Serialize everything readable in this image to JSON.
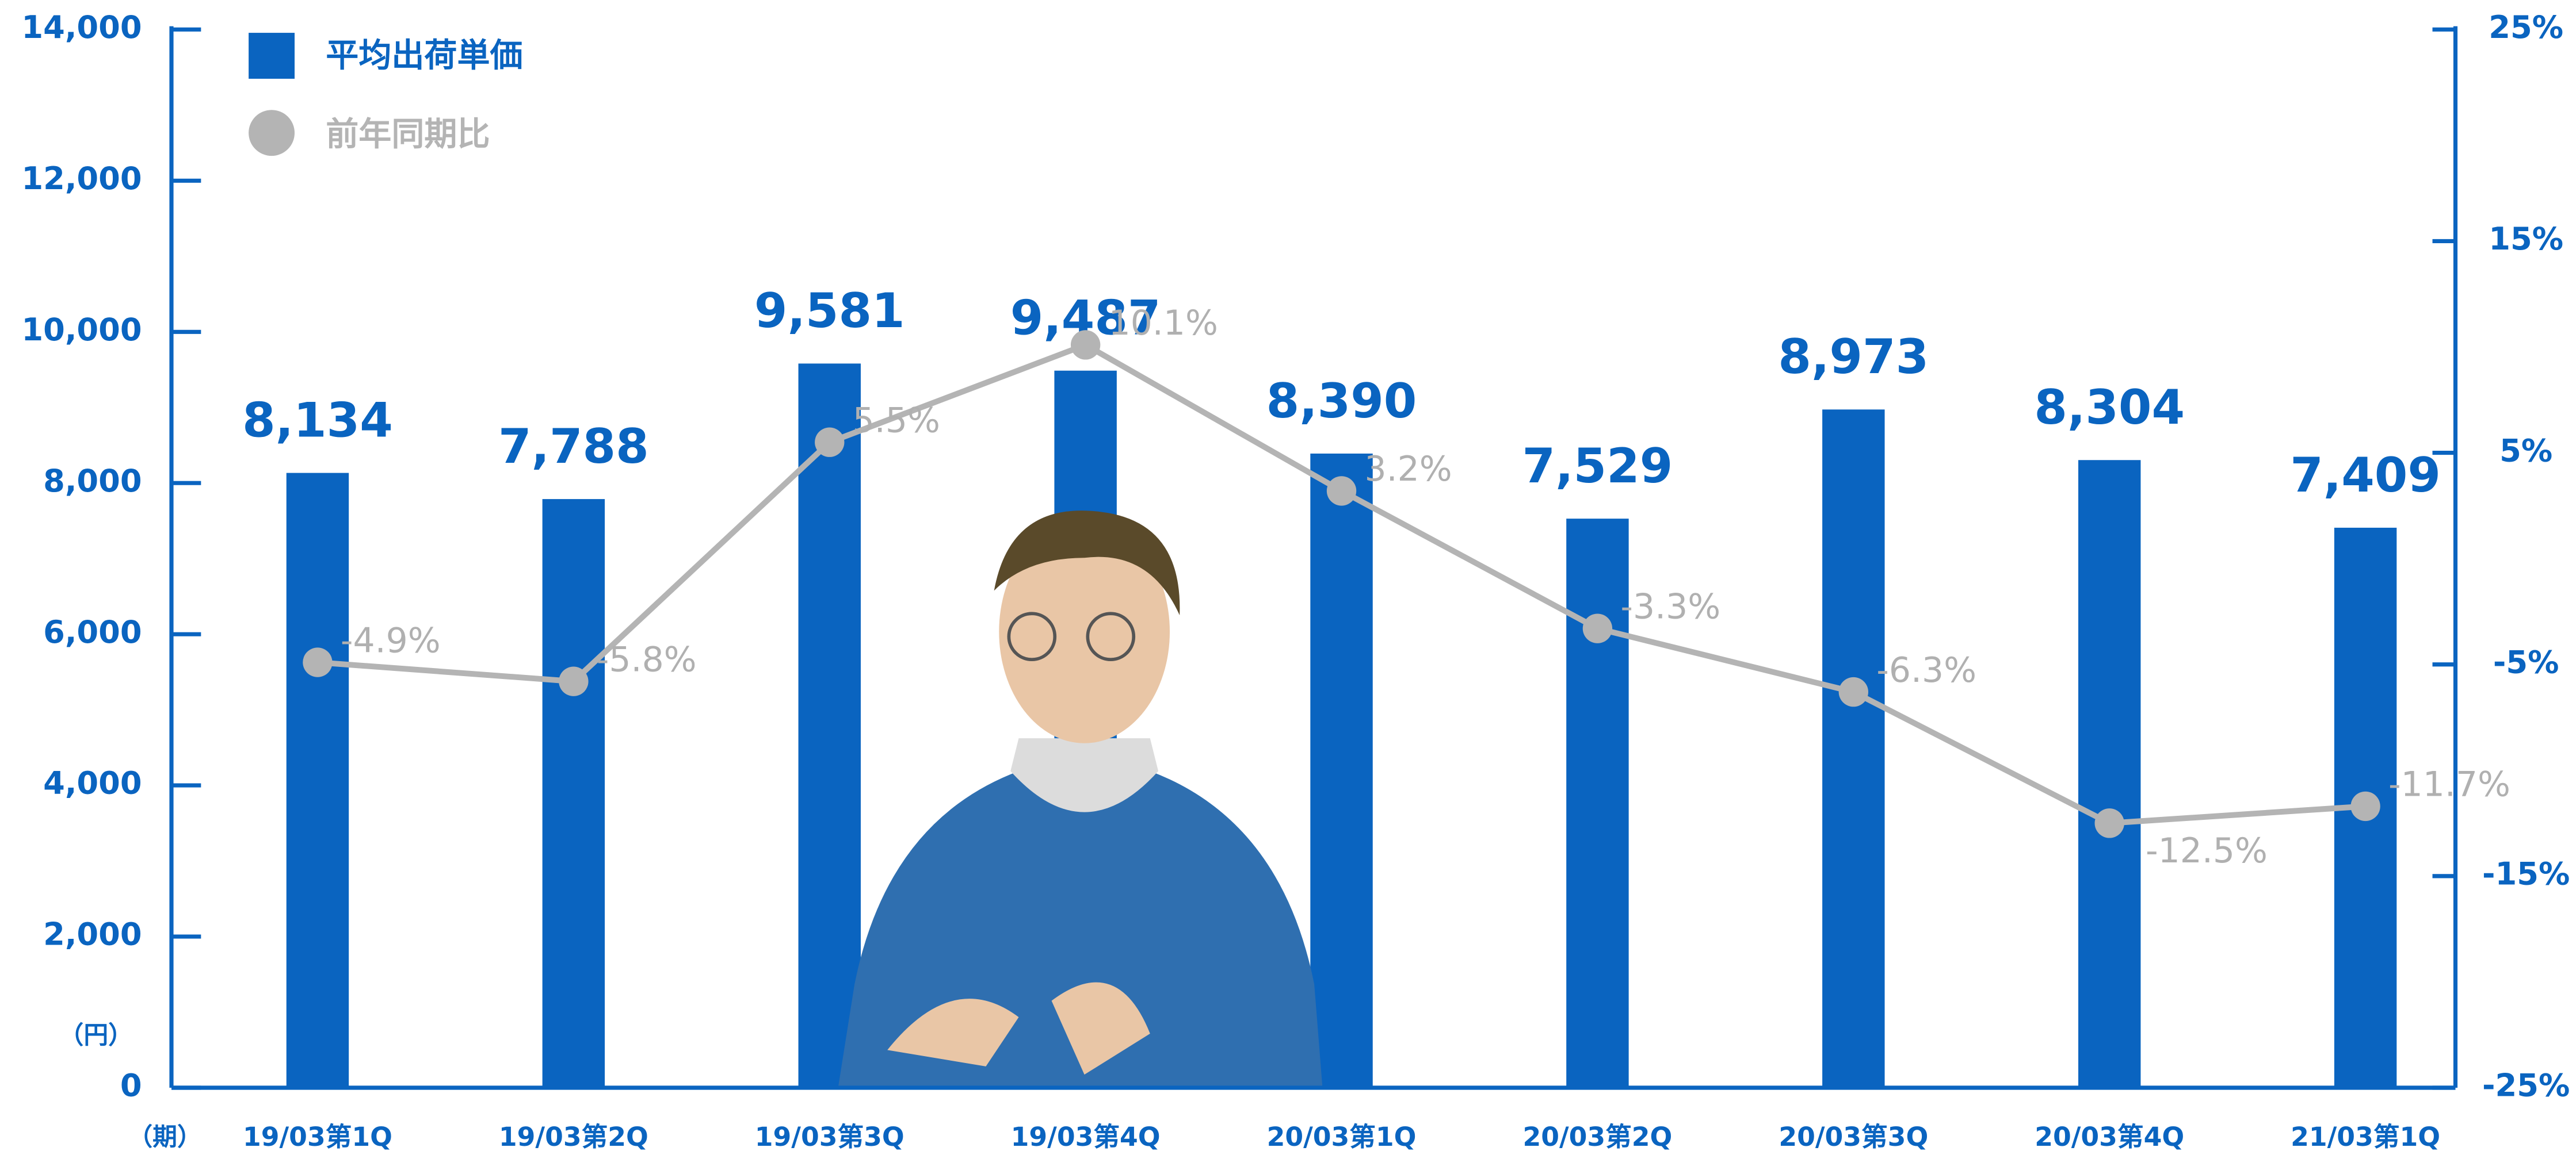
{
  "chart_data": {
    "type": "bar",
    "categories": [
      "19/03第1Q",
      "19/03第2Q",
      "19/03第3Q",
      "19/03第4Q",
      "20/03第1Q",
      "20/03第2Q",
      "20/03第3Q",
      "20/03第4Q",
      "21/03第1Q"
    ],
    "series": [
      {
        "name": "平均出荷単価",
        "color": "#0a64c0",
        "type": "bar",
        "values": [
          8134,
          7788,
          9581,
          9487,
          8390,
          7529,
          8973,
          8304,
          7409
        ],
        "value_labels": [
          "8,134",
          "7,788",
          "9,581",
          "9,487",
          "8,390",
          "7,529",
          "8,973",
          "8,304",
          "7,409"
        ]
      },
      {
        "name": "前年同期比",
        "color": "#b4b4b4",
        "type": "line",
        "axis": "y2",
        "values": [
          -4.9,
          -5.8,
          5.5,
          10.1,
          3.2,
          -3.3,
          -6.3,
          -12.5,
          -11.7
        ],
        "value_labels": [
          "-4.9%",
          "-5.8%",
          "5.5%",
          "10.1%",
          "3.2%",
          "-3.3%",
          "-6.3%",
          "-12.5%",
          "-11.7%"
        ]
      }
    ],
    "ylabel": "（円）",
    "xlabel": "（期）",
    "ylim": [
      0,
      14000
    ],
    "yticks": [
      0,
      {
        "value": 2000,
        "label": "2,000"
      },
      {
        "value": 4000,
        "label": "4,000"
      },
      {
        "value": 6000,
        "label": "6,000"
      },
      {
        "value": 8000,
        "label": "8,000"
      },
      {
        "value": 10000,
        "label": "10,000"
      },
      {
        "value": 12000,
        "label": "12,000"
      },
      {
        "value": 14000,
        "label": "14,000"
      }
    ],
    "y2lim": [
      -25,
      25
    ],
    "y2ticks": [
      {
        "value": -25,
        "label": "-25%"
      },
      {
        "value": -15,
        "label": "-15%"
      },
      {
        "value": -5,
        "label": "-5%"
      },
      {
        "value": 5,
        "label": "5%"
      },
      {
        "value": 15,
        "label": "15%"
      },
      {
        "value": 25,
        "label": "25%"
      }
    ]
  }
}
